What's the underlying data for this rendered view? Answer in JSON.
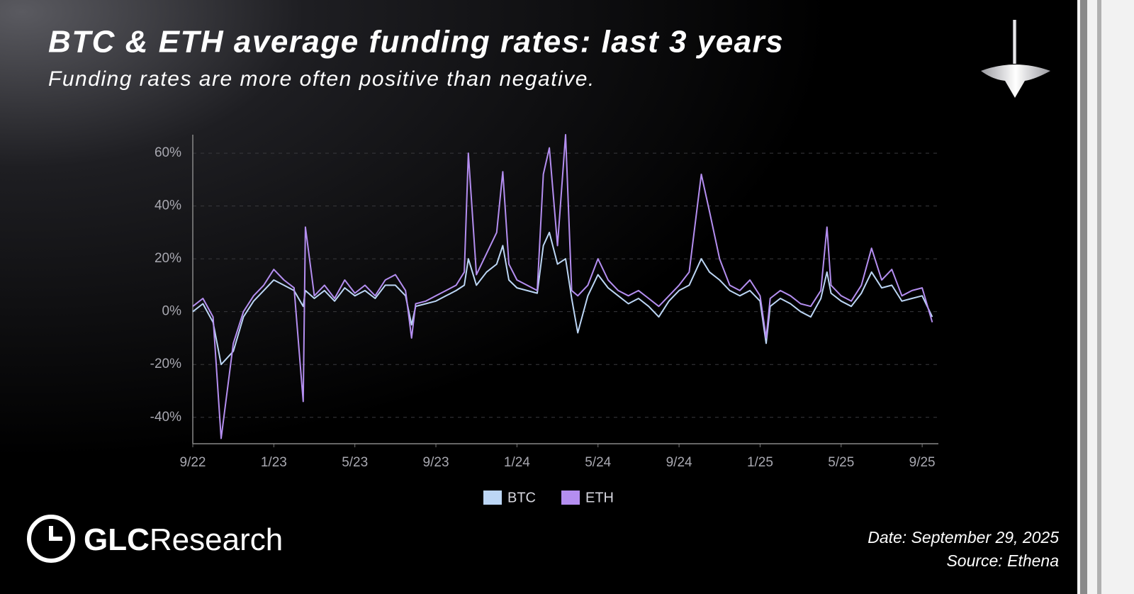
{
  "chart_data": {
    "type": "line",
    "title": "BTC & ETH average funding rates: last 3 years",
    "subtitle": "Funding rates are more often positive than negative.",
    "x": [
      0,
      0.5,
      1,
      1.4,
      2,
      2.5,
      3,
      3.5,
      4,
      4.5,
      5,
      5.45,
      5.56,
      6,
      6.5,
      7,
      7.5,
      8,
      8.5,
      9,
      9.5,
      10,
      10.5,
      10.8,
      11,
      11.5,
      12,
      12.5,
      13,
      13.4,
      13.6,
      14,
      14.5,
      15,
      15.3,
      15.6,
      16,
      16.5,
      17,
      17.3,
      17.6,
      18,
      18.4,
      18.7,
      19,
      19.5,
      20,
      20.5,
      21,
      21.5,
      22,
      22.5,
      23,
      23.5,
      24,
      24.5,
      25.1,
      25.5,
      26,
      26.5,
      27,
      27.5,
      28,
      28.3,
      28.5,
      29,
      29.5,
      30,
      30.5,
      31,
      31.3,
      31.5,
      32,
      32.5,
      33,
      33.5,
      34,
      34.5,
      35,
      35.5,
      36,
      36.5
    ],
    "series": [
      {
        "name": "BTC",
        "color": "#bcd6f5",
        "values": [
          0,
          3,
          -4,
          -20,
          -15,
          -2,
          4,
          8,
          12,
          10,
          8,
          2,
          8,
          5,
          8,
          4,
          9,
          6,
          8,
          5,
          10,
          10,
          6,
          -5,
          2,
          3,
          4,
          6,
          8,
          10,
          20,
          10,
          15,
          18,
          25,
          12,
          9,
          8,
          7,
          25,
          30,
          18,
          20,
          5,
          -8,
          6,
          14,
          9,
          6,
          3,
          5,
          2,
          -2,
          4,
          8,
          10,
          20,
          15,
          12,
          8,
          6,
          8,
          4,
          -12,
          2,
          5,
          3,
          0,
          -2,
          5,
          15,
          7,
          4,
          2,
          7,
          15,
          9,
          10,
          4,
          5,
          6,
          -2
        ]
      },
      {
        "name": "ETH",
        "color": "#b48ef0",
        "values": [
          2,
          5,
          -2,
          -48,
          -12,
          0,
          6,
          10,
          16,
          12,
          9,
          -34,
          32,
          6,
          10,
          5,
          12,
          7,
          10,
          6,
          12,
          14,
          8,
          -10,
          3,
          4,
          6,
          8,
          10,
          15,
          60,
          14,
          22,
          30,
          53,
          18,
          12,
          10,
          8,
          52,
          62,
          25,
          67,
          8,
          6,
          10,
          20,
          12,
          8,
          6,
          8,
          5,
          2,
          6,
          10,
          15,
          52,
          38,
          20,
          10,
          8,
          12,
          6,
          -10,
          5,
          8,
          6,
          3,
          2,
          8,
          32,
          10,
          6,
          4,
          10,
          24,
          12,
          16,
          6,
          8,
          9,
          -4
        ]
      }
    ],
    "xlim": [
      0,
      36.8
    ],
    "xticks": [
      {
        "value": 0,
        "label": "9/22"
      },
      {
        "value": 4,
        "label": "1/23"
      },
      {
        "value": 8,
        "label": "5/23"
      },
      {
        "value": 12,
        "label": "9/23"
      },
      {
        "value": 16,
        "label": "1/24"
      },
      {
        "value": 20,
        "label": "5/24"
      },
      {
        "value": 24,
        "label": "9/24"
      },
      {
        "value": 28,
        "label": "1/25"
      },
      {
        "value": 32,
        "label": "5/25"
      },
      {
        "value": 36,
        "label": "9/25"
      }
    ],
    "ylim": [
      -50,
      67
    ],
    "yticks": [
      {
        "value": -40,
        "label": "-40%"
      },
      {
        "value": -20,
        "label": "-20%"
      },
      {
        "value": 0,
        "label": "0%"
      },
      {
        "value": 20,
        "label": "20%"
      },
      {
        "value": 40,
        "label": "40%"
      },
      {
        "value": 60,
        "label": "60%"
      }
    ],
    "grid": true
  },
  "brand": {
    "name": "GLC",
    "suffix": "Research"
  },
  "footer": {
    "date": "Date: September 29, 2025",
    "source": "Source: Ethena"
  }
}
